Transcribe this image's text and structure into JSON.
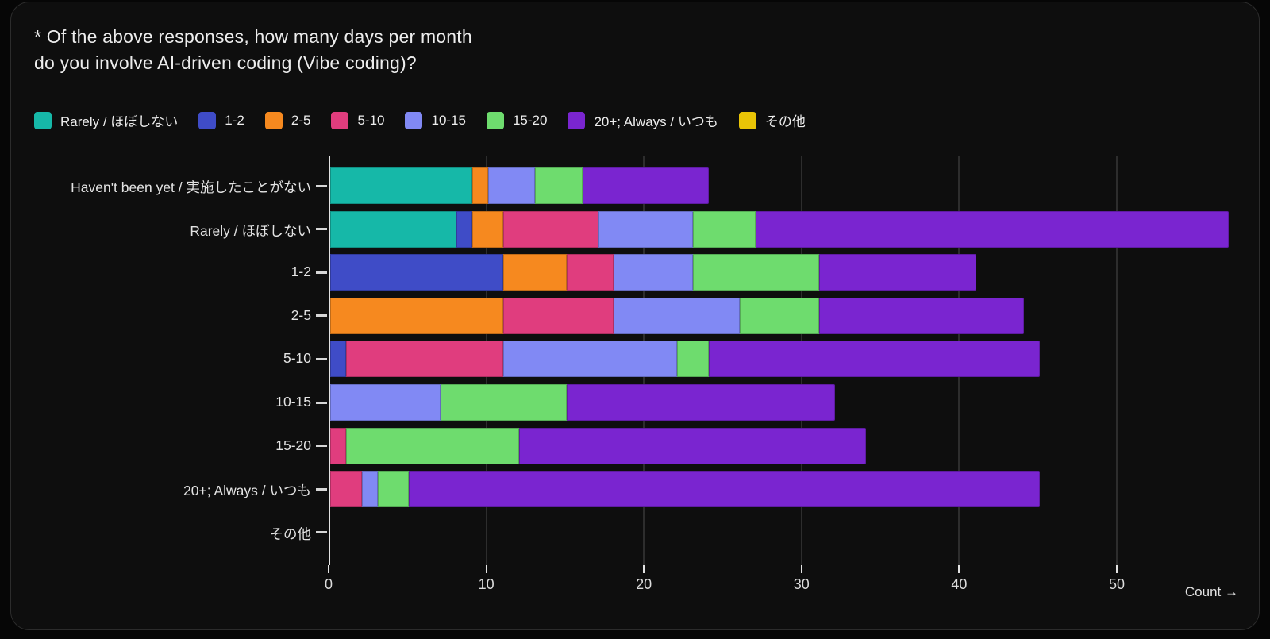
{
  "title": "* Of the above responses, how many days per month\ndo you involve AI-driven coding (Vibe coding)?",
  "chart_data": {
    "type": "bar",
    "orientation": "horizontal",
    "stacked": true,
    "title": "* Of the above responses, how many days per month do you involve AI-driven coding (Vibe coding)?",
    "xlabel": "Count →",
    "ylabel": "",
    "x_ticks": [
      0,
      10,
      20,
      30,
      40,
      50
    ],
    "xlim": [
      0,
      57.7
    ],
    "grid": "vertical",
    "legend_position": "top",
    "categories": [
      "Haven't been yet / 実施したことがない",
      "Rarely / ほぼしない",
      "1-2",
      "2-5",
      "5-10",
      "10-15",
      "15-20",
      "20+; Always / いつも",
      "その他"
    ],
    "series": [
      {
        "name": "Rarely / ほぼしない",
        "color": "#16b8a8",
        "values": [
          9,
          8,
          0,
          0,
          0,
          0,
          0,
          0,
          0
        ]
      },
      {
        "name": "1-2",
        "color": "#3f4cc7",
        "values": [
          0,
          1,
          11,
          0,
          1,
          0,
          0,
          0,
          0
        ]
      },
      {
        "name": "2-5",
        "color": "#f6891f",
        "values": [
          1,
          2,
          4,
          11,
          0,
          0,
          0,
          0,
          0
        ]
      },
      {
        "name": "5-10",
        "color": "#e03d7e",
        "values": [
          0,
          6,
          3,
          7,
          10,
          0,
          1,
          2,
          0
        ]
      },
      {
        "name": "10-15",
        "color": "#8189f4",
        "values": [
          3,
          6,
          5,
          8,
          11,
          7,
          0,
          1,
          0
        ]
      },
      {
        "name": "15-20",
        "color": "#6edc6e",
        "values": [
          3,
          4,
          8,
          5,
          2,
          8,
          11,
          2,
          0
        ]
      },
      {
        "name": "20+; Always / いつも",
        "color": "#7a25d0",
        "values": [
          8,
          30,
          10,
          13,
          21,
          17,
          22,
          40,
          0
        ]
      },
      {
        "name": "その他",
        "color": "#e9c406",
        "values": [
          0,
          0,
          0,
          0,
          0,
          0,
          0,
          0,
          0
        ]
      }
    ],
    "totals": [
      24,
      57,
      41,
      44,
      45,
      32,
      34,
      45,
      0
    ]
  },
  "colors": {
    "page_background": "#060606",
    "card_background": "#0e0e0e",
    "card_border": "#2c2c2c",
    "text": "#ededed",
    "gridline": "rgba(255,255,255,0.13)",
    "axis": "#e2e2e2"
  }
}
